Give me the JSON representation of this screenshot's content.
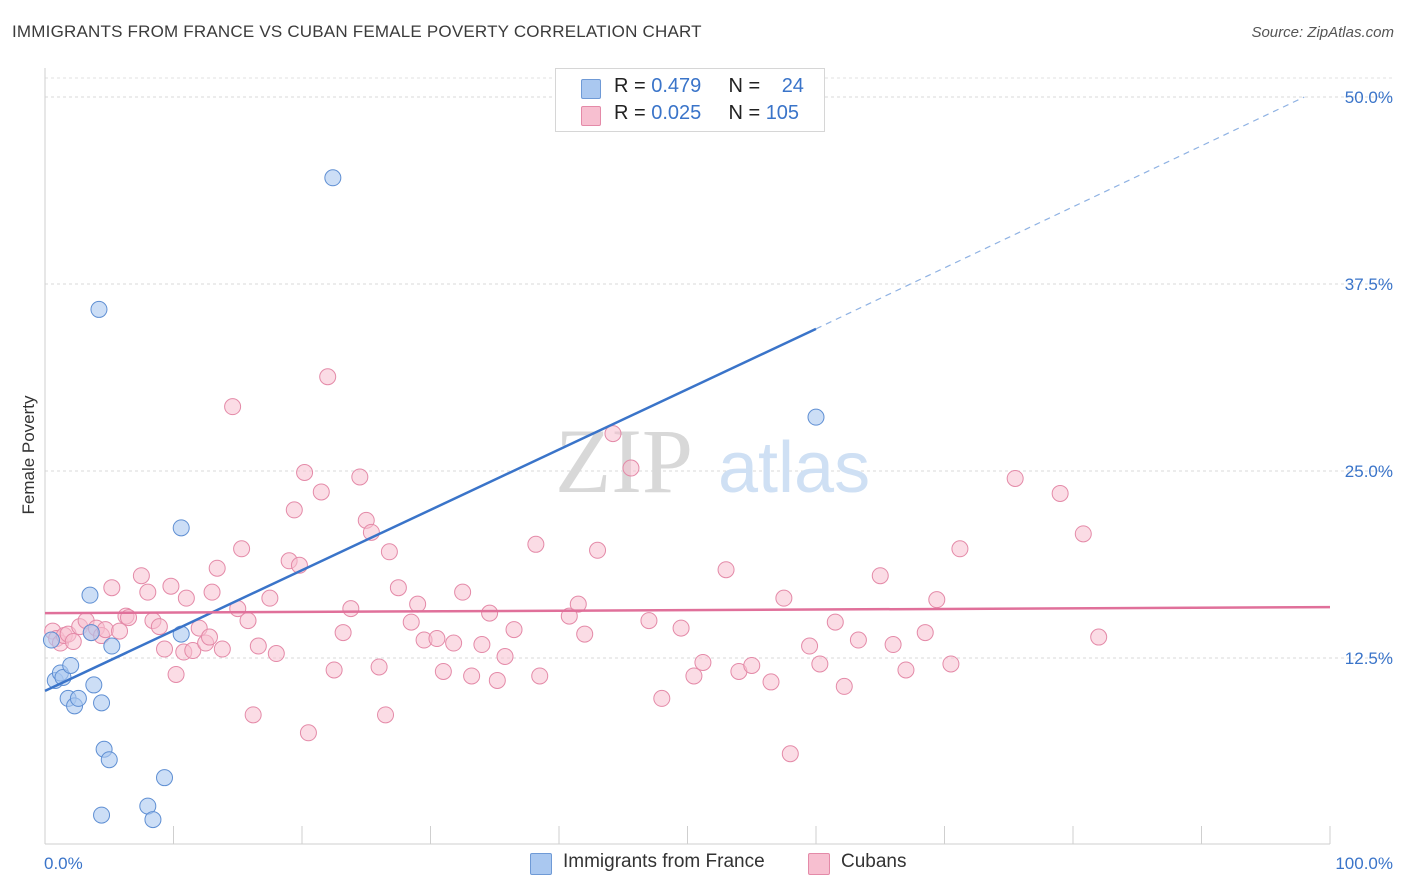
{
  "header": {
    "title": "IMMIGRANTS FROM FRANCE VS CUBAN FEMALE POVERTY CORRELATION CHART",
    "source": "Source: ZipAtlas.com"
  },
  "watermark": {
    "part1": "ZIP",
    "part2": "atlas"
  },
  "legend_box": {
    "rows": [
      {
        "r_label": "R = ",
        "r_value": "0.479",
        "n_label": "N = ",
        "n_value": "24",
        "color": "#aac8f0"
      },
      {
        "r_label": "R = ",
        "r_value": "0.025",
        "n_label": "N = ",
        "n_value": "105",
        "color": "#f7bfd0"
      }
    ]
  },
  "bottom_legend": [
    {
      "label": "Immigrants from France",
      "color": "#aac8f0"
    },
    {
      "label": "Cubans",
      "color": "#f7bfd0"
    }
  ],
  "chart_data": {
    "type": "scatter",
    "title": "IMMIGRANTS FROM FRANCE VS CUBAN FEMALE POVERTY CORRELATION CHART",
    "xlabel": "",
    "ylabel": "Female Poverty",
    "xlim": [
      0,
      100
    ],
    "ylim": [
      0,
      50
    ],
    "x_tick_labels": [
      "0.0%",
      "100.0%"
    ],
    "y_ticks": [
      12.5,
      25.0,
      37.5,
      50.0
    ],
    "y_tick_labels": [
      "12.5%",
      "25.0%",
      "37.5%",
      "50.0%"
    ],
    "grid": "horizontal dashed",
    "legend_placement": "top-center",
    "colors": {
      "france": "#3a74c9",
      "cubans": "#e0709a",
      "france_fill": "#aac8f0",
      "cubans_fill": "#f7bfd0",
      "axis_text": "#3a74c9"
    },
    "series": [
      {
        "name": "Immigrants from France",
        "x": [
          0.5,
          0.8,
          1.2,
          1.4,
          2.0,
          1.8,
          2.3,
          2.6,
          3.5,
          3.8,
          3.6,
          5.2,
          4.4,
          4.6,
          5.0,
          4.2,
          8.0,
          8.4,
          9.3,
          10.6,
          10.6,
          22.4,
          4.4,
          60.0
        ],
        "y": [
          13.7,
          11.0,
          11.5,
          11.2,
          12.0,
          9.8,
          9.3,
          9.8,
          16.7,
          10.7,
          14.2,
          13.3,
          9.5,
          6.4,
          5.7,
          35.8,
          2.6,
          1.7,
          4.5,
          21.2,
          14.1,
          44.6,
          2.0,
          28.6
        ]
      },
      {
        "name": "Cubans",
        "x": [
          0.6,
          0.9,
          1.2,
          1.5,
          1.8,
          2.2,
          2.7,
          3.2,
          3.6,
          4.0,
          4.4,
          4.7,
          5.2,
          5.8,
          6.3,
          6.5,
          7.5,
          8.0,
          8.4,
          8.9,
          9.3,
          9.8,
          10.2,
          10.8,
          11.0,
          11.5,
          12.0,
          12.5,
          12.8,
          13.0,
          13.4,
          13.8,
          14.6,
          15.0,
          15.3,
          15.8,
          16.2,
          16.6,
          17.5,
          18.0,
          19.0,
          19.4,
          19.8,
          20.2,
          20.5,
          21.5,
          22.0,
          22.5,
          23.2,
          23.8,
          24.5,
          25.0,
          25.4,
          26.0,
          26.5,
          26.8,
          27.5,
          28.5,
          29.0,
          29.5,
          30.5,
          31.0,
          31.8,
          32.5,
          33.2,
          34.0,
          34.6,
          35.2,
          35.8,
          36.5,
          38.2,
          38.5,
          40.8,
          41.5,
          42.0,
          43.0,
          44.2,
          45.6,
          47.0,
          48.0,
          49.5,
          50.5,
          51.2,
          53.0,
          54.0,
          55.0,
          56.5,
          57.5,
          58.0,
          59.5,
          60.3,
          61.5,
          62.2,
          63.3,
          65.0,
          66.0,
          67.0,
          68.5,
          69.4,
          70.5,
          71.2,
          75.5,
          79.0,
          80.8,
          82.0
        ],
        "y": [
          14.3,
          13.8,
          13.5,
          14.0,
          14.1,
          13.6,
          14.6,
          15.0,
          14.2,
          14.5,
          14.0,
          14.4,
          17.2,
          14.3,
          15.3,
          15.2,
          18.0,
          16.9,
          15.0,
          14.6,
          13.1,
          17.3,
          11.4,
          12.9,
          16.5,
          13.0,
          14.5,
          13.5,
          13.9,
          16.9,
          18.5,
          13.1,
          29.3,
          15.8,
          19.8,
          15.0,
          8.7,
          13.3,
          16.5,
          12.8,
          19.0,
          22.4,
          18.7,
          24.9,
          7.5,
          23.6,
          31.3,
          11.7,
          14.2,
          15.8,
          24.6,
          21.7,
          20.9,
          11.9,
          8.7,
          19.6,
          17.2,
          14.9,
          16.1,
          13.7,
          13.8,
          11.6,
          13.5,
          16.9,
          11.3,
          13.4,
          15.5,
          11.0,
          12.6,
          14.4,
          20.1,
          11.3,
          15.3,
          16.1,
          14.1,
          19.7,
          27.5,
          25.2,
          15.0,
          9.8,
          14.5,
          11.3,
          12.2,
          18.4,
          11.6,
          12.0,
          10.9,
          16.5,
          6.1,
          13.3,
          12.1,
          14.9,
          10.6,
          13.7,
          18.0,
          13.4,
          11.7,
          14.2,
          16.4,
          12.1,
          19.8,
          24.5,
          23.5,
          20.8,
          13.9
        ]
      }
    ],
    "trend_lines": [
      {
        "series": "Immigrants from France",
        "x": [
          0,
          60,
          98
        ],
        "y": [
          10.3,
          34.5,
          50.0
        ],
        "solid_until_x": 60
      },
      {
        "series": "Cubans",
        "x": [
          0,
          100
        ],
        "y": [
          15.5,
          15.9
        ]
      }
    ]
  }
}
